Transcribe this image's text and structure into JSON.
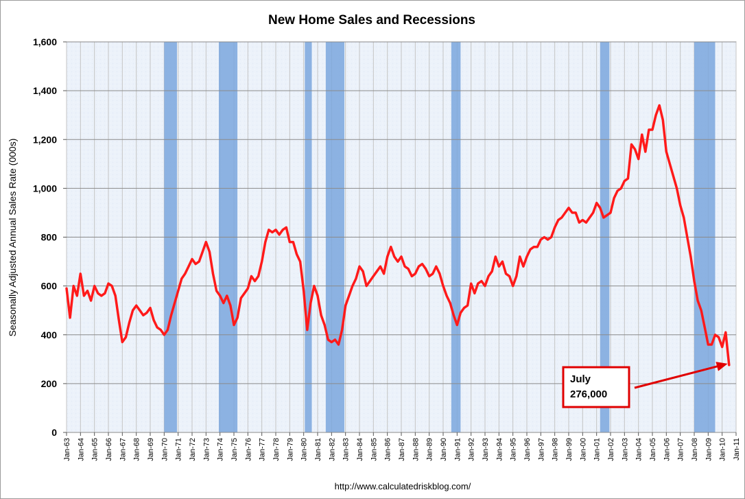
{
  "chart_data": {
    "type": "line",
    "title": "New Home Sales and Recessions",
    "ylabel": "Seasonally Adjusted Annual Sales Rate (000s)",
    "xlabel": "",
    "ylim": [
      0,
      1600
    ],
    "yticks": [
      0,
      200,
      400,
      600,
      800,
      1000,
      1200,
      1400,
      1600
    ],
    "ytick_labels": [
      "0",
      "200",
      "400",
      "600",
      "800",
      "1,000",
      "1,200",
      "1,400",
      "1,600"
    ],
    "xlim": [
      "Jan-63",
      "Jan-11"
    ],
    "xtick_labels": [
      "Jan-63",
      "Jan-64",
      "Jan-65",
      "Jan-66",
      "Jan-67",
      "Jan-68",
      "Jan-69",
      "Jan-70",
      "Jan-71",
      "Jan-72",
      "Jan-73",
      "Jan-74",
      "Jan-75",
      "Jan-76",
      "Jan-77",
      "Jan-78",
      "Jan-79",
      "Jan-80",
      "Jan-81",
      "Jan-82",
      "Jan-83",
      "Jan-84",
      "Jan-85",
      "Jan-86",
      "Jan-87",
      "Jan-88",
      "Jan-89",
      "Jan-90",
      "Jan-91",
      "Jan-92",
      "Jan-93",
      "Jan-94",
      "Jan-95",
      "Jan-96",
      "Jan-97",
      "Jan-98",
      "Jan-99",
      "Jan-00",
      "Jan-01",
      "Jan-02",
      "Jan-03",
      "Jan-04",
      "Jan-05",
      "Jan-06",
      "Jan-07",
      "Jan-08",
      "Jan-09",
      "Jan-10",
      "Jan-11"
    ],
    "grid": true,
    "recessions": [
      {
        "start": "Jan-70",
        "end": "Nov-70"
      },
      {
        "start": "Dec-73",
        "end": "Mar-75"
      },
      {
        "start": "Feb-80",
        "end": "Jul-80"
      },
      {
        "start": "Aug-81",
        "end": "Nov-82"
      },
      {
        "start": "Aug-90",
        "end": "Mar-91"
      },
      {
        "start": "Apr-01",
        "end": "Nov-01"
      },
      {
        "start": "Jan-08",
        "end": "Jun-09"
      }
    ],
    "series": [
      {
        "name": "",
        "color": "#ff1a1a",
        "points": [
          [
            "Jan-63",
            590
          ],
          [
            "Apr-63",
            470
          ],
          [
            "Jul-63",
            600
          ],
          [
            "Oct-63",
            560
          ],
          [
            "Jan-64",
            650
          ],
          [
            "Apr-64",
            560
          ],
          [
            "Jul-64",
            580
          ],
          [
            "Oct-64",
            540
          ],
          [
            "Jan-65",
            600
          ],
          [
            "Apr-65",
            570
          ],
          [
            "Jul-65",
            560
          ],
          [
            "Oct-65",
            570
          ],
          [
            "Jan-66",
            610
          ],
          [
            "Apr-66",
            600
          ],
          [
            "Jul-66",
            560
          ],
          [
            "Oct-66",
            460
          ],
          [
            "Jan-67",
            370
          ],
          [
            "Apr-67",
            390
          ],
          [
            "Jul-67",
            450
          ],
          [
            "Oct-67",
            500
          ],
          [
            "Jan-68",
            520
          ],
          [
            "Apr-68",
            500
          ],
          [
            "Jul-68",
            480
          ],
          [
            "Oct-68",
            490
          ],
          [
            "Jan-69",
            510
          ],
          [
            "Apr-69",
            460
          ],
          [
            "Jul-69",
            430
          ],
          [
            "Oct-69",
            420
          ],
          [
            "Jan-70",
            400
          ],
          [
            "Apr-70",
            420
          ],
          [
            "Jul-70",
            480
          ],
          [
            "Oct-70",
            530
          ],
          [
            "Jan-71",
            580
          ],
          [
            "Apr-71",
            630
          ],
          [
            "Jul-71",
            650
          ],
          [
            "Oct-71",
            680
          ],
          [
            "Jan-72",
            710
          ],
          [
            "Apr-72",
            690
          ],
          [
            "Jul-72",
            700
          ],
          [
            "Oct-72",
            740
          ],
          [
            "Jan-73",
            780
          ],
          [
            "Apr-73",
            740
          ],
          [
            "Jul-73",
            650
          ],
          [
            "Oct-73",
            580
          ],
          [
            "Jan-74",
            560
          ],
          [
            "Apr-74",
            530
          ],
          [
            "Jul-74",
            560
          ],
          [
            "Oct-74",
            520
          ],
          [
            "Jan-75",
            440
          ],
          [
            "Apr-75",
            470
          ],
          [
            "Jul-75",
            550
          ],
          [
            "Oct-75",
            570
          ],
          [
            "Jan-76",
            590
          ],
          [
            "Apr-76",
            640
          ],
          [
            "Jul-76",
            620
          ],
          [
            "Oct-76",
            640
          ],
          [
            "Jan-77",
            700
          ],
          [
            "Apr-77",
            780
          ],
          [
            "Jul-77",
            830
          ],
          [
            "Oct-77",
            820
          ],
          [
            "Jan-78",
            830
          ],
          [
            "Apr-78",
            810
          ],
          [
            "Jul-78",
            830
          ],
          [
            "Oct-78",
            840
          ],
          [
            "Jan-79",
            780
          ],
          [
            "Apr-79",
            780
          ],
          [
            "Jul-79",
            730
          ],
          [
            "Oct-79",
            700
          ],
          [
            "Jan-80",
            580
          ],
          [
            "Apr-80",
            420
          ],
          [
            "Jul-80",
            530
          ],
          [
            "Oct-80",
            600
          ],
          [
            "Jan-81",
            560
          ],
          [
            "Apr-81",
            480
          ],
          [
            "Jul-81",
            440
          ],
          [
            "Oct-81",
            380
          ],
          [
            "Jan-82",
            370
          ],
          [
            "Apr-82",
            380
          ],
          [
            "Jul-82",
            360
          ],
          [
            "Oct-82",
            420
          ],
          [
            "Jan-83",
            520
          ],
          [
            "Apr-83",
            560
          ],
          [
            "Jul-83",
            600
          ],
          [
            "Oct-83",
            630
          ],
          [
            "Jan-84",
            680
          ],
          [
            "Apr-84",
            660
          ],
          [
            "Jul-84",
            600
          ],
          [
            "Oct-84",
            620
          ],
          [
            "Jan-85",
            640
          ],
          [
            "Apr-85",
            660
          ],
          [
            "Jul-85",
            680
          ],
          [
            "Oct-85",
            650
          ],
          [
            "Jan-86",
            720
          ],
          [
            "Apr-86",
            760
          ],
          [
            "Jul-86",
            720
          ],
          [
            "Oct-86",
            700
          ],
          [
            "Jan-87",
            720
          ],
          [
            "Apr-87",
            680
          ],
          [
            "Jul-87",
            670
          ],
          [
            "Oct-87",
            640
          ],
          [
            "Jan-88",
            650
          ],
          [
            "Apr-88",
            680
          ],
          [
            "Jul-88",
            690
          ],
          [
            "Oct-88",
            670
          ],
          [
            "Jan-89",
            640
          ],
          [
            "Apr-89",
            650
          ],
          [
            "Jul-89",
            680
          ],
          [
            "Oct-89",
            650
          ],
          [
            "Jan-90",
            600
          ],
          [
            "Apr-90",
            560
          ],
          [
            "Jul-90",
            530
          ],
          [
            "Oct-90",
            480
          ],
          [
            "Jan-91",
            440
          ],
          [
            "Apr-91",
            490
          ],
          [
            "Jul-91",
            510
          ],
          [
            "Oct-91",
            520
          ],
          [
            "Jan-92",
            610
          ],
          [
            "Apr-92",
            570
          ],
          [
            "Jul-92",
            610
          ],
          [
            "Oct-92",
            620
          ],
          [
            "Jan-93",
            600
          ],
          [
            "Apr-93",
            640
          ],
          [
            "Jul-93",
            660
          ],
          [
            "Oct-93",
            720
          ],
          [
            "Jan-94",
            680
          ],
          [
            "Apr-94",
            700
          ],
          [
            "Jul-94",
            650
          ],
          [
            "Oct-94",
            640
          ],
          [
            "Jan-95",
            600
          ],
          [
            "Apr-95",
            640
          ],
          [
            "Jul-95",
            720
          ],
          [
            "Oct-95",
            680
          ],
          [
            "Jan-96",
            720
          ],
          [
            "Apr-96",
            750
          ],
          [
            "Jul-96",
            760
          ],
          [
            "Oct-96",
            760
          ],
          [
            "Jan-97",
            790
          ],
          [
            "Apr-97",
            800
          ],
          [
            "Jul-97",
            790
          ],
          [
            "Oct-97",
            800
          ],
          [
            "Jan-98",
            840
          ],
          [
            "Apr-98",
            870
          ],
          [
            "Jul-98",
            880
          ],
          [
            "Oct-98",
            900
          ],
          [
            "Jan-99",
            920
          ],
          [
            "Apr-99",
            900
          ],
          [
            "Jul-99",
            900
          ],
          [
            "Oct-99",
            860
          ],
          [
            "Jan-00",
            870
          ],
          [
            "Apr-00",
            860
          ],
          [
            "Jul-00",
            880
          ],
          [
            "Oct-00",
            900
          ],
          [
            "Jan-01",
            940
          ],
          [
            "Apr-01",
            920
          ],
          [
            "Jul-01",
            880
          ],
          [
            "Oct-01",
            890
          ],
          [
            "Jan-02",
            900
          ],
          [
            "Apr-02",
            960
          ],
          [
            "Jul-02",
            990
          ],
          [
            "Oct-02",
            1000
          ],
          [
            "Jan-03",
            1030
          ],
          [
            "Apr-03",
            1040
          ],
          [
            "Jul-03",
            1180
          ],
          [
            "Oct-03",
            1160
          ],
          [
            "Jan-04",
            1120
          ],
          [
            "Apr-04",
            1220
          ],
          [
            "Jul-04",
            1150
          ],
          [
            "Oct-04",
            1240
          ],
          [
            "Jan-05",
            1240
          ],
          [
            "Apr-05",
            1300
          ],
          [
            "Jul-05",
            1340
          ],
          [
            "Oct-05",
            1280
          ],
          [
            "Jan-06",
            1150
          ],
          [
            "Apr-06",
            1100
          ],
          [
            "Jul-06",
            1050
          ],
          [
            "Oct-06",
            1000
          ],
          [
            "Jan-07",
            930
          ],
          [
            "Apr-07",
            880
          ],
          [
            "Jul-07",
            800
          ],
          [
            "Oct-07",
            720
          ],
          [
            "Jan-08",
            620
          ],
          [
            "Apr-08",
            540
          ],
          [
            "Jul-08",
            500
          ],
          [
            "Oct-08",
            430
          ],
          [
            "Jan-09",
            360
          ],
          [
            "Apr-09",
            360
          ],
          [
            "Jul-09",
            400
          ],
          [
            "Oct-09",
            390
          ],
          [
            "Jan-10",
            350
          ],
          [
            "Apr-10",
            410
          ],
          [
            "Jul-10",
            276
          ]
        ]
      }
    ],
    "annotations": [
      {
        "lines": [
          "July",
          "276,000"
        ],
        "target": [
          "Jul-10",
          276
        ]
      }
    ],
    "source": "http://www.calculatedriskblog.com/"
  }
}
